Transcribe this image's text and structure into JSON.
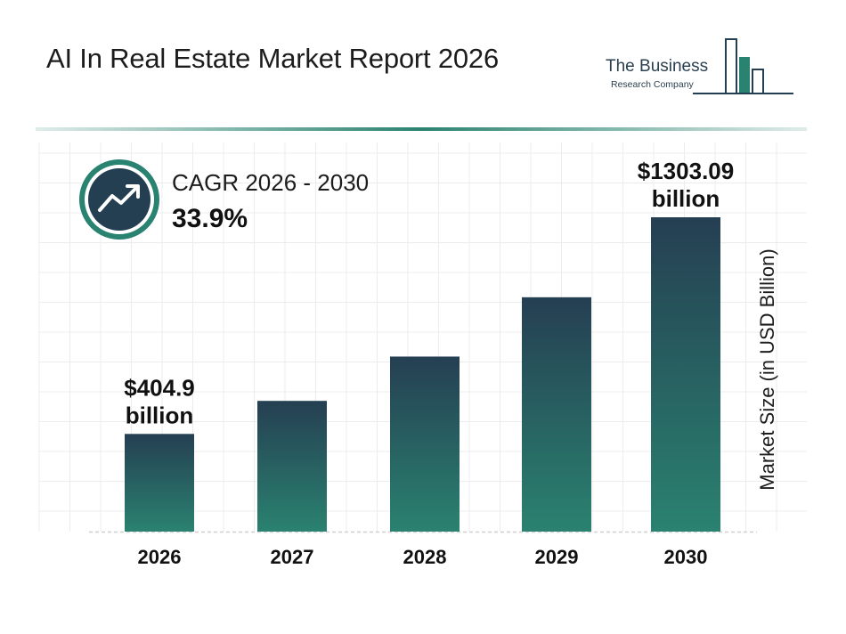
{
  "header": {
    "title": "AI In Real Estate Market Report 2026",
    "logo_line1": "The Business",
    "logo_line2": "Research Company"
  },
  "cagr": {
    "label": "CAGR 2026 - 2030",
    "value": "33.9%",
    "icon": "trend-up-icon"
  },
  "colors": {
    "bar_top": "#253f52",
    "bar_bottom": "#2a8270",
    "accent": "#2a8270",
    "dark": "#253f52"
  },
  "chart_data": {
    "type": "bar",
    "categories": [
      "2026",
      "2027",
      "2028",
      "2029",
      "2030"
    ],
    "values": [
      404.9,
      541.9,
      725.6,
      971.5,
      1303.09
    ],
    "data_labels": [
      [
        "$404.9",
        "billion"
      ],
      null,
      null,
      null,
      [
        "$1303.09",
        "billion"
      ]
    ],
    "ylabel": "Market Size (in USD Billion)",
    "ylim": [
      0,
      1303.09
    ],
    "grid": true
  }
}
